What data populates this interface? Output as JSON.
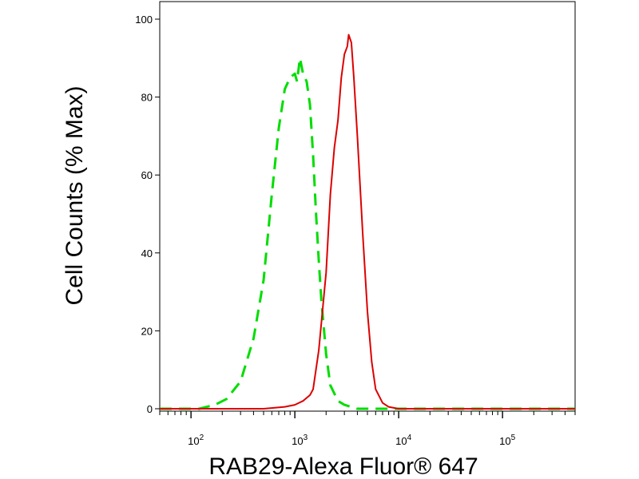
{
  "chart_data": {
    "type": "line",
    "xlabel": "RAB29-Alexa Fluor® 647",
    "ylabel": "Cell Counts (% Max)",
    "x_scale": "log",
    "xlim": [
      50,
      500000
    ],
    "ylim": [
      0,
      100
    ],
    "x_ticks": [
      {
        "value": 100,
        "base": "10",
        "exp": "2"
      },
      {
        "value": 1000,
        "base": "10",
        "exp": "3"
      },
      {
        "value": 10000,
        "base": "10",
        "exp": "4"
      },
      {
        "value": 100000,
        "base": "10",
        "exp": "5"
      }
    ],
    "y_ticks": [
      0,
      20,
      40,
      60,
      80,
      100
    ],
    "grid": false,
    "series": [
      {
        "color": "#00dd00",
        "style": "dashed",
        "x": [
          50,
          120,
          170,
          220,
          300,
          400,
          500,
          600,
          700,
          800,
          900,
          1000,
          1050,
          1120,
          1200,
          1300,
          1400,
          1500,
          1600,
          1700,
          1800,
          2000,
          2200,
          2600,
          3000,
          4000,
          500000
        ],
        "y": [
          0,
          0,
          1,
          2.5,
          7,
          18,
          33,
          55,
          72,
          82,
          85,
          86,
          84,
          90,
          86,
          84,
          78,
          65,
          50,
          38,
          28,
          14,
          6,
          2,
          1,
          0,
          0
        ]
      },
      {
        "color": "#dd0000",
        "style": "solid",
        "x": [
          50,
          500,
          800,
          1000,
          1200,
          1400,
          1500,
          1700,
          2000,
          2200,
          2400,
          2600,
          2800,
          3000,
          3200,
          3300,
          3500,
          3700,
          4000,
          4500,
          5000,
          5500,
          6000,
          7000,
          8000,
          10000,
          500000
        ],
        "y": [
          0,
          0,
          0.5,
          1,
          2,
          3.5,
          5,
          15,
          35,
          55,
          67,
          74,
          85,
          91,
          93,
          96,
          94,
          85,
          70,
          45,
          25,
          12,
          5,
          1.5,
          0.5,
          0,
          0
        ]
      }
    ]
  }
}
